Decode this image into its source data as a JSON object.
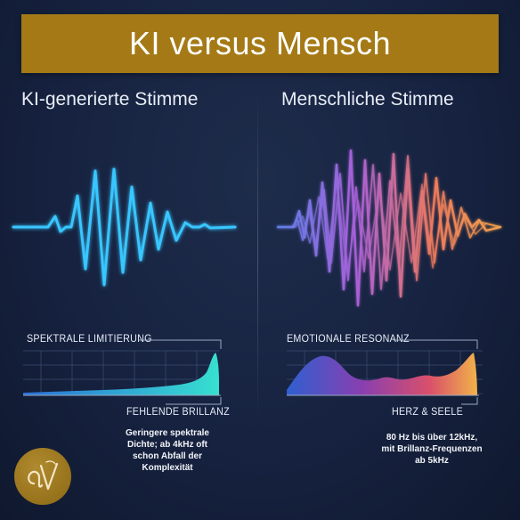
{
  "title": "KI versus Mensch",
  "ai": {
    "heading": "KI-generierte Stimme",
    "chart_top_label": "SPEKTRALE LIMITIERUNG",
    "chart_bottom_label": "FEHLENDE BRILLANZ",
    "caption_lines": [
      "Geringere spektrale",
      "Dichte; ab 4kHz oft",
      "schon Abfall der",
      "Komplexität"
    ],
    "wave_color": "#38c6ff"
  },
  "human": {
    "heading": "Menschliche Stimme",
    "chart_top_label": "EMOTIONALE RESONANZ",
    "chart_bottom_label": "HERZ & SEELE",
    "caption_lines": [
      "80 Hz bis über 12kHz,",
      "mit Brillanz-Frequenzen",
      "ab 5kHz"
    ],
    "wave_colors": [
      "#6a7fe0",
      "#a860d8",
      "#ee7a5c",
      "#f0a24c"
    ]
  },
  "logo": {
    "icon": "av-monogram-logo",
    "text": "aV",
    "color": "#a57a16"
  },
  "colors": {
    "background": "#15203a",
    "banner": "#a57a16",
    "text": "#e8edf6"
  }
}
